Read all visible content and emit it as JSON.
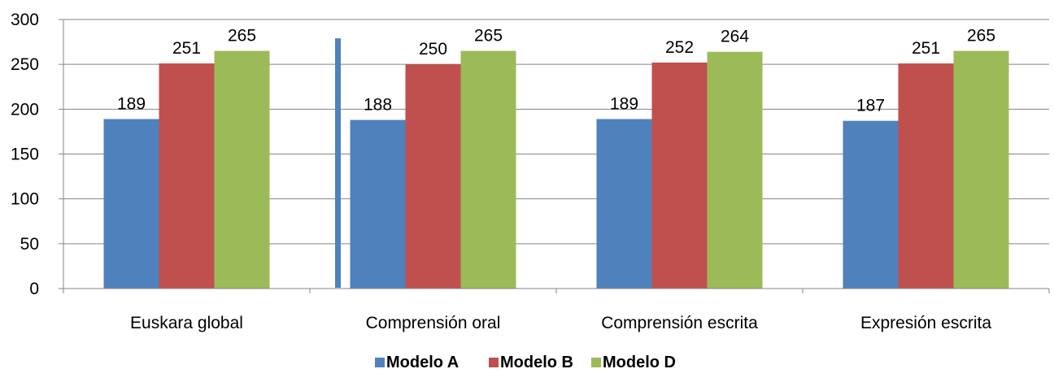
{
  "chart_data": {
    "type": "bar",
    "categories": [
      "Euskara global",
      "Comprensión oral",
      "Comprensión escrita",
      "Expresión escrita"
    ],
    "series": [
      {
        "name": "Modelo A",
        "color": "#4F81BD",
        "values": [
          189,
          188,
          189,
          187
        ]
      },
      {
        "name": "Modelo B",
        "color": "#C0504D",
        "values": [
          251,
          250,
          252,
          251
        ]
      },
      {
        "name": "Modelo D",
        "color": "#9BBB59",
        "values": [
          265,
          265,
          264,
          265
        ]
      }
    ],
    "ylim": [
      0,
      300
    ],
    "yticks": [
      0,
      50,
      100,
      150,
      200,
      250,
      300
    ],
    "grid": true,
    "legend_position": "bottom",
    "marker": {
      "color": "#4F81BD",
      "value": 279
    }
  }
}
